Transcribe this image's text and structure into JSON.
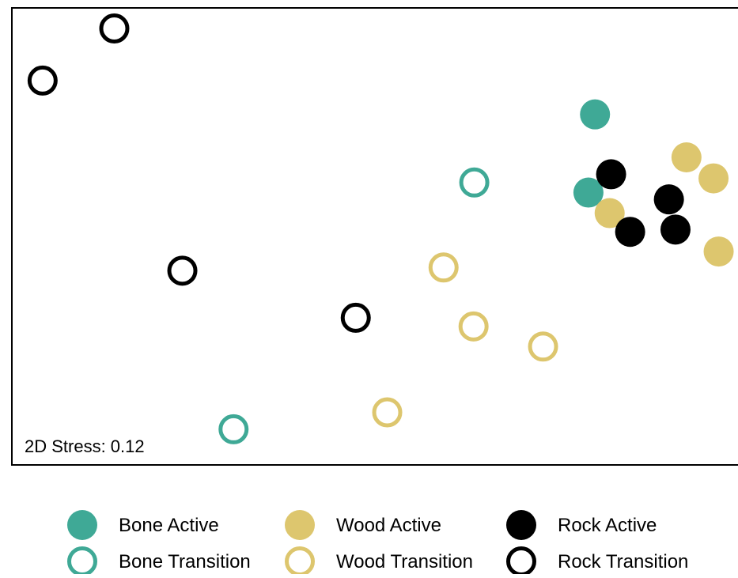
{
  "chart_data": {
    "type": "scatter",
    "title": "",
    "xlabel": "",
    "ylabel": "",
    "annotation": "2D Stress: 0.12",
    "grid": false,
    "axes_ticks": false,
    "legend_position": "bottom",
    "xlim": [
      0,
      100
    ],
    "ylim": [
      0,
      100
    ],
    "series": [
      {
        "name": "Bone Active",
        "color": "#3fa996",
        "filled": true,
        "points": [
          [
            79.7,
            76.7
          ],
          [
            78.8,
            59.6
          ]
        ]
      },
      {
        "name": "Bone Transition",
        "color": "#3fa996",
        "filled": true,
        "points": [
          [
            63.2,
            61.8
          ],
          [
            30.3,
            7.8
          ]
        ]
      },
      {
        "name": "Wood Active",
        "color": "#ddc66e",
        "filled": true,
        "points": [
          [
            92.2,
            67.3
          ],
          [
            95.9,
            62.7
          ],
          [
            81.7,
            55.1
          ],
          [
            96.6,
            46.7
          ]
        ]
      },
      {
        "name": "Wood Transition",
        "color": "#ddc66e",
        "filled": true,
        "points": [
          [
            59.0,
            43.2
          ],
          [
            63.1,
            30.3
          ],
          [
            72.6,
            25.9
          ],
          [
            51.3,
            11.5
          ]
        ]
      },
      {
        "name": "Rock Active",
        "color": "#000000",
        "filled": true,
        "points": [
          [
            81.9,
            63.6
          ],
          [
            89.8,
            58.1
          ],
          [
            84.5,
            51.0
          ],
          [
            90.7,
            51.5
          ]
        ]
      },
      {
        "name": "Rock Transition",
        "color": "#000000",
        "filled": true,
        "points": [
          [
            14.0,
            95.5
          ],
          [
            4.2,
            84.1
          ],
          [
            23.3,
            42.5
          ],
          [
            47.0,
            32.2
          ]
        ]
      }
    ]
  }
}
